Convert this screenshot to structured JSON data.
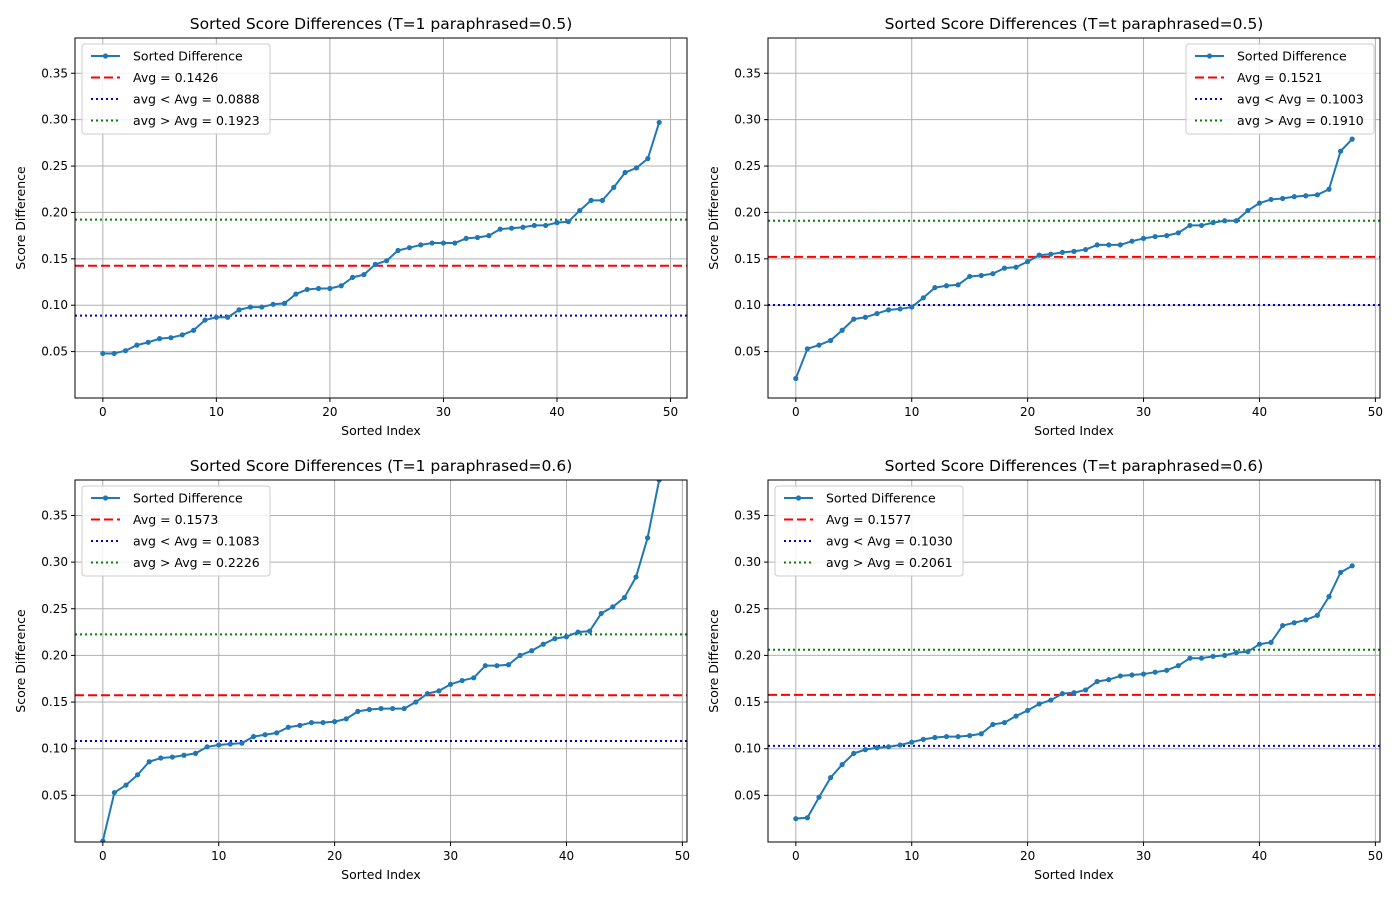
{
  "colors": {
    "line": "#1f77b4",
    "avg": "#ff0000",
    "below": "#0000cc",
    "above": "#008000",
    "grid": "#b0b0b0"
  },
  "chart_data": [
    {
      "type": "line",
      "title": "Sorted Score Differences (T=1 paraphrased=0.5)",
      "xlabel": "Sorted Index",
      "ylabel": "Score Difference",
      "xlim": [
        -2.45,
        51.45
      ],
      "ylim": [
        0,
        0.388
      ],
      "xticks": [
        0,
        10,
        20,
        30,
        40,
        50
      ],
      "yticks": [
        0.05,
        0.1,
        0.15,
        0.2,
        0.25,
        0.3,
        0.35
      ],
      "grid": true,
      "legend_position": "top-left",
      "series": [
        {
          "name": "Sorted Difference",
          "style": "solid-marker",
          "values": [
            0.048,
            0.048,
            0.051,
            0.057,
            0.06,
            0.064,
            0.065,
            0.068,
            0.073,
            0.084,
            0.087,
            0.087,
            0.095,
            0.098,
            0.098,
            0.101,
            0.102,
            0.112,
            0.117,
            0.118,
            0.118,
            0.121,
            0.13,
            0.133,
            0.144,
            0.148,
            0.159,
            0.162,
            0.165,
            0.167,
            0.167,
            0.167,
            0.172,
            0.173,
            0.175,
            0.182,
            0.183,
            0.184,
            0.186,
            0.186,
            0.189,
            0.19,
            0.202,
            0.213,
            0.213,
            0.227,
            0.243,
            0.248,
            0.258,
            0.297
          ]
        }
      ],
      "hlines": [
        {
          "label": "Avg = 0.1426",
          "y": 0.1426,
          "style": "dashed",
          "color_key": "avg"
        },
        {
          "label": "avg < Avg = 0.0888",
          "y": 0.0888,
          "style": "dotted",
          "color_key": "below"
        },
        {
          "label": "avg > Avg = 0.1923",
          "y": 0.1923,
          "style": "dotted",
          "color_key": "above"
        }
      ]
    },
    {
      "type": "line",
      "title": "Sorted Score Differences (T=t paraphrased=0.5)",
      "xlabel": "Sorted Index",
      "ylabel": "Score Difference",
      "xlim": [
        -2.4,
        50.4
      ],
      "ylim": [
        0,
        0.388
      ],
      "xticks": [
        0,
        10,
        20,
        30,
        40,
        50
      ],
      "yticks": [
        0.05,
        0.1,
        0.15,
        0.2,
        0.25,
        0.3,
        0.35
      ],
      "grid": true,
      "legend_position": "top-right",
      "series": [
        {
          "name": "Sorted Difference",
          "style": "solid-marker",
          "values": [
            0.021,
            0.053,
            0.057,
            0.062,
            0.073,
            0.085,
            0.087,
            0.091,
            0.095,
            0.096,
            0.098,
            0.108,
            0.119,
            0.121,
            0.122,
            0.131,
            0.132,
            0.134,
            0.14,
            0.141,
            0.147,
            0.154,
            0.155,
            0.157,
            0.158,
            0.16,
            0.165,
            0.165,
            0.165,
            0.169,
            0.172,
            0.174,
            0.175,
            0.178,
            0.186,
            0.186,
            0.189,
            0.191,
            0.191,
            0.202,
            0.21,
            0.214,
            0.215,
            0.217,
            0.218,
            0.219,
            0.225,
            0.266,
            0.279
          ]
        }
      ],
      "hlines": [
        {
          "label": "Avg = 0.1521",
          "y": 0.1521,
          "style": "dashed",
          "color_key": "avg"
        },
        {
          "label": "avg < Avg = 0.1003",
          "y": 0.1003,
          "style": "dotted",
          "color_key": "below"
        },
        {
          "label": "avg > Avg = 0.1910",
          "y": 0.191,
          "style": "dotted",
          "color_key": "above"
        }
      ]
    },
    {
      "type": "line",
      "title": "Sorted Score Differences (T=1 paraphrased=0.6)",
      "xlabel": "Sorted Index",
      "ylabel": "Score Difference",
      "xlim": [
        -2.4,
        50.4
      ],
      "ylim": [
        0,
        0.388
      ],
      "xticks": [
        0,
        10,
        20,
        30,
        40,
        50
      ],
      "yticks": [
        0.05,
        0.1,
        0.15,
        0.2,
        0.25,
        0.3,
        0.35
      ],
      "grid": true,
      "legend_position": "top-left",
      "series": [
        {
          "name": "Sorted Difference",
          "style": "solid-marker",
          "values": [
            0.001,
            0.053,
            0.061,
            0.072,
            0.086,
            0.09,
            0.091,
            0.093,
            0.095,
            0.102,
            0.104,
            0.105,
            0.106,
            0.113,
            0.115,
            0.117,
            0.123,
            0.125,
            0.128,
            0.128,
            0.129,
            0.132,
            0.14,
            0.142,
            0.143,
            0.143,
            0.143,
            0.15,
            0.159,
            0.162,
            0.169,
            0.173,
            0.176,
            0.189,
            0.189,
            0.19,
            0.2,
            0.205,
            0.212,
            0.218,
            0.22,
            0.225,
            0.226,
            0.245,
            0.252,
            0.262,
            0.284,
            0.326,
            0.388
          ]
        }
      ],
      "hlines": [
        {
          "label": "Avg = 0.1573",
          "y": 0.1573,
          "style": "dashed",
          "color_key": "avg"
        },
        {
          "label": "avg < Avg = 0.1083",
          "y": 0.1083,
          "style": "dotted",
          "color_key": "below"
        },
        {
          "label": "avg > Avg = 0.2226",
          "y": 0.2226,
          "style": "dotted",
          "color_key": "above"
        }
      ]
    },
    {
      "type": "line",
      "title": "Sorted Score Differences (T=t paraphrased=0.6)",
      "xlabel": "Sorted Index",
      "ylabel": "Score Difference",
      "xlim": [
        -2.4,
        50.4
      ],
      "ylim": [
        0,
        0.388
      ],
      "xticks": [
        0,
        10,
        20,
        30,
        40,
        50
      ],
      "yticks": [
        0.05,
        0.1,
        0.15,
        0.2,
        0.25,
        0.3,
        0.35
      ],
      "grid": true,
      "legend_position": "top-left",
      "series": [
        {
          "name": "Sorted Difference",
          "style": "solid-marker",
          "values": [
            0.025,
            0.026,
            0.048,
            0.069,
            0.083,
            0.095,
            0.099,
            0.101,
            0.102,
            0.104,
            0.107,
            0.11,
            0.112,
            0.113,
            0.113,
            0.114,
            0.116,
            0.126,
            0.128,
            0.135,
            0.141,
            0.148,
            0.152,
            0.159,
            0.16,
            0.163,
            0.172,
            0.174,
            0.178,
            0.179,
            0.18,
            0.182,
            0.184,
            0.189,
            0.197,
            0.197,
            0.199,
            0.2,
            0.203,
            0.204,
            0.212,
            0.214,
            0.232,
            0.235,
            0.238,
            0.243,
            0.263,
            0.289,
            0.296
          ]
        }
      ],
      "hlines": [
        {
          "label": "Avg = 0.1577",
          "y": 0.1577,
          "style": "dashed",
          "color_key": "avg"
        },
        {
          "label": "avg < Avg = 0.1030",
          "y": 0.103,
          "style": "dotted",
          "color_key": "below"
        },
        {
          "label": "avg > Avg = 0.2061",
          "y": 0.2061,
          "style": "dotted",
          "color_key": "above"
        }
      ]
    }
  ]
}
